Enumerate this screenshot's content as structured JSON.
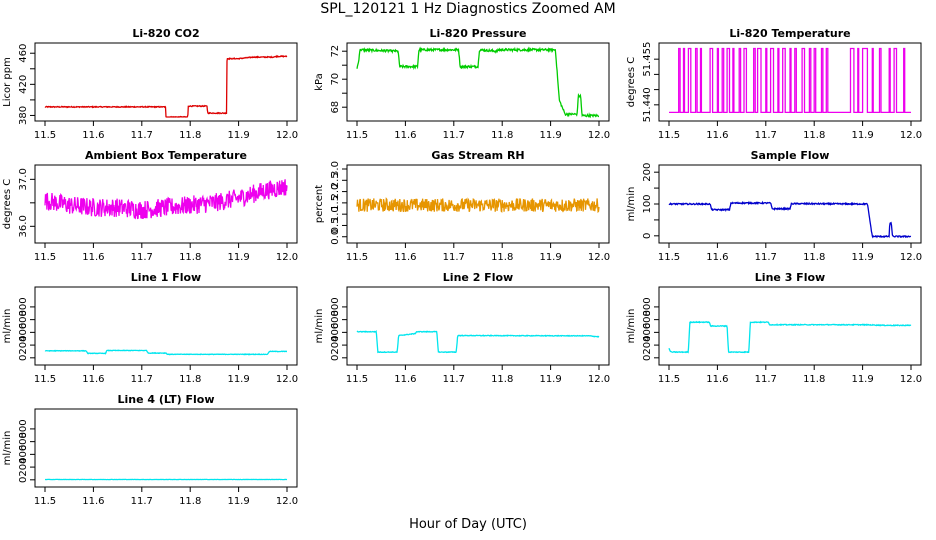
{
  "figure": {
    "title": "SPL_120121  1 Hz Diagnostics Zoomed AM",
    "xlabel": "Hour of Day (UTC)"
  },
  "chart_data": [
    {
      "type": "line",
      "title": "Li-820 CO2",
      "ylabel": "Licor ppm",
      "color": "#dd0000",
      "noise": 0.6,
      "xlim": [
        11.5,
        12.0
      ],
      "ylim": [
        378,
        468
      ],
      "xticks": [
        "11.5",
        "11.6",
        "11.7",
        "11.8",
        "11.9",
        "12.0"
      ],
      "yticks": [
        380,
        400,
        420,
        440,
        460
      ],
      "yticklabels": [
        "380",
        "",
        "420",
        "",
        "460"
      ],
      "x": [
        11.5,
        11.749,
        11.75,
        11.795,
        11.796,
        11.835,
        11.836,
        11.875,
        11.876,
        11.9,
        11.93,
        11.97,
        11.98,
        12.0
      ],
      "y": [
        391,
        391,
        378,
        378,
        392,
        392,
        383,
        383,
        453,
        453,
        455,
        455,
        456,
        456
      ]
    },
    {
      "type": "line",
      "title": "Li-820 Pressure",
      "ylabel": "kPa",
      "color": "#00cc00",
      "noise": 0.08,
      "xlim": [
        11.5,
        12.0
      ],
      "ylim": [
        67.3,
        72.3
      ],
      "xticks": [
        "11.5",
        "11.6",
        "11.7",
        "11.8",
        "11.9",
        "12.0"
      ],
      "yticks": [
        68,
        69,
        70,
        71,
        72
      ],
      "yticklabels": [
        "68",
        "",
        "70",
        "",
        "72"
      ],
      "x": [
        11.5,
        11.503,
        11.506,
        11.585,
        11.588,
        11.625,
        11.628,
        11.71,
        11.713,
        11.75,
        11.753,
        11.79,
        11.793,
        11.91,
        11.918,
        11.93,
        11.955,
        11.957,
        11.962,
        11.965,
        11.97,
        12.0
      ],
      "y": [
        70.8,
        71.2,
        72.1,
        72.0,
        70.9,
        70.9,
        72.1,
        72.1,
        70.9,
        70.9,
        72.1,
        72.0,
        72.1,
        72.1,
        68.5,
        67.5,
        67.5,
        68.8,
        68.8,
        67.4,
        67.4,
        67.4
      ]
    },
    {
      "type": "line",
      "title": "Li-820 Temperature",
      "ylabel": "degrees C",
      "color": "#ee00ee",
      "xlim": [
        11.5,
        12.0
      ],
      "ylim": [
        51.436,
        51.459
      ],
      "xticks": [
        "11.5",
        "11.6",
        "11.7",
        "11.8",
        "11.9",
        "12.0"
      ],
      "yticks": [
        51.44,
        51.445,
        51.45,
        51.455
      ],
      "yticklabels": [
        "51.440",
        "",
        "",
        "51.455"
      ],
      "low": 51.4375,
      "high": 51.4585,
      "switch_times": [
        11.52,
        11.523,
        11.53,
        11.532,
        11.54,
        11.545,
        11.555,
        11.558,
        11.565,
        11.567,
        11.585,
        11.59,
        11.6,
        11.602,
        11.61,
        11.613,
        11.62,
        11.625,
        11.632,
        11.634,
        11.645,
        11.648,
        11.655,
        11.66,
        11.675,
        11.678,
        11.683,
        11.69,
        11.7,
        11.702,
        11.71,
        11.716,
        11.725,
        11.727,
        11.735,
        11.74,
        11.75,
        11.752,
        11.76,
        11.763,
        11.775,
        11.78,
        11.79,
        11.793,
        11.8,
        11.803,
        11.815,
        11.818,
        11.825,
        11.828,
        11.875,
        11.882,
        11.89,
        11.892,
        11.9,
        11.91,
        11.92,
        11.922,
        11.935,
        11.938,
        11.955,
        11.957,
        11.965,
        11.97,
        11.985,
        11.987
      ]
    },
    {
      "type": "line",
      "title": "Ambient Box Temperature",
      "ylabel": "degrees C",
      "color": "#ee00ee",
      "noise": 0.2,
      "xlim": [
        11.5,
        12.0
      ],
      "ylim": [
        35.73,
        37.22
      ],
      "xticks": [
        "11.5",
        "11.6",
        "11.7",
        "11.8",
        "11.9",
        "12.0"
      ],
      "yticks": [
        36.0,
        36.5,
        37.0
      ],
      "yticklabels": [
        "36.0",
        "",
        "37.0"
      ],
      "x": [
        11.5,
        11.55,
        11.6,
        11.65,
        11.7,
        11.75,
        11.8,
        11.85,
        11.9,
        11.95,
        12.0
      ],
      "y": [
        36.55,
        36.45,
        36.4,
        36.4,
        36.35,
        36.4,
        36.45,
        36.5,
        36.6,
        36.75,
        36.85
      ]
    },
    {
      "type": "line",
      "title": "Gas Stream RH",
      "ylabel": "percent",
      "color": "#e69500",
      "noise": 0.3,
      "xlim": [
        11.5,
        12.0
      ],
      "ylim": [
        -0.1,
        3.0
      ],
      "xticks": [
        "11.5",
        "11.6",
        "11.7",
        "11.8",
        "11.9",
        "12.0"
      ],
      "yticks": [
        0.0,
        0.5,
        1.0,
        1.5,
        2.0,
        2.5,
        3.0
      ],
      "yticklabels": [
        "0.0",
        "0.5",
        "1.0",
        "1.5",
        "2.0",
        "2.5",
        "3.0"
      ],
      "x": [
        11.5,
        11.6,
        11.7,
        11.8,
        11.9,
        12.0
      ],
      "y": [
        1.4,
        1.4,
        1.4,
        1.4,
        1.4,
        1.4
      ]
    },
    {
      "type": "line",
      "title": "Sample Flow",
      "ylabel": "ml/min",
      "color": "#0000cc",
      "noise": 2,
      "xlim": [
        11.5,
        12.0
      ],
      "ylim": [
        -10,
        210
      ],
      "xticks": [
        "11.5",
        "11.6",
        "11.7",
        "11.8",
        "11.9",
        "12.0"
      ],
      "yticks": [
        0,
        50,
        100,
        150,
        200
      ],
      "yticklabels": [
        "0",
        "",
        "100",
        "",
        "200"
      ],
      "x": [
        11.5,
        11.585,
        11.588,
        11.625,
        11.628,
        11.71,
        11.713,
        11.75,
        11.753,
        11.9,
        11.91,
        11.92,
        11.955,
        11.956,
        11.959,
        11.962,
        11.963,
        12.0
      ],
      "y": [
        100,
        100,
        82,
        82,
        103,
        103,
        85,
        85,
        101,
        100,
        100,
        -2,
        -2,
        40,
        40,
        -2,
        -2,
        -2
      ]
    },
    {
      "type": "line",
      "title": "Line 1 Flow",
      "ylabel": "ml/min",
      "color": "#00e5ee",
      "noise": 4,
      "xlim": [
        11.5,
        12.0
      ],
      "ylim": [
        -50,
        1050
      ],
      "xticks": [
        "11.5",
        "11.6",
        "11.7",
        "11.8",
        "11.9",
        "12.0"
      ],
      "yticks": [
        0,
        200,
        400,
        600,
        800
      ],
      "yticklabels": [
        "0",
        "200",
        "400",
        "600",
        "800"
      ],
      "x": [
        11.5,
        11.585,
        11.588,
        11.625,
        11.628,
        11.71,
        11.713,
        11.75,
        11.753,
        11.96,
        11.963,
        12.0
      ],
      "y": [
        110,
        110,
        70,
        70,
        115,
        115,
        75,
        75,
        55,
        55,
        100,
        100
      ]
    },
    {
      "type": "line",
      "title": "Line 2 Flow",
      "ylabel": "ml/min",
      "color": "#00e5ee",
      "noise": 5,
      "xlim": [
        11.5,
        12.0
      ],
      "ylim": [
        -50,
        1050
      ],
      "xticks": [
        "11.5",
        "11.6",
        "11.7",
        "11.8",
        "11.9",
        "12.0"
      ],
      "yticks": [
        0,
        200,
        400,
        600,
        800
      ],
      "yticklabels": [
        "0",
        "200",
        "400",
        "600",
        "800"
      ],
      "x": [
        11.5,
        11.54,
        11.543,
        11.583,
        11.586,
        11.62,
        11.623,
        11.665,
        11.668,
        11.705,
        11.708,
        11.98,
        12.0
      ],
      "y": [
        410,
        410,
        90,
        90,
        350,
        380,
        410,
        410,
        90,
        90,
        350,
        345,
        330
      ]
    },
    {
      "type": "line",
      "title": "Line 3 Flow",
      "ylabel": "ml/min",
      "color": "#00e5ee",
      "noise": 6,
      "xlim": [
        11.5,
        12.0
      ],
      "ylim": [
        -50,
        1050
      ],
      "xticks": [
        "11.5",
        "11.6",
        "11.7",
        "11.8",
        "11.9",
        "12.0"
      ],
      "yticks": [
        0,
        200,
        400,
        600,
        800
      ],
      "yticklabels": [
        "0",
        "200",
        "400",
        "600",
        "800"
      ],
      "x": [
        11.5,
        11.502,
        11.505,
        11.54,
        11.543,
        11.583,
        11.586,
        11.62,
        11.623,
        11.665,
        11.668,
        11.705,
        11.708,
        11.9,
        11.95,
        12.0
      ],
      "y": [
        150,
        110,
        90,
        90,
        560,
        560,
        500,
        500,
        90,
        90,
        560,
        560,
        520,
        520,
        510,
        510
      ]
    },
    {
      "type": "line",
      "title": "Line 4 (LT) Flow",
      "ylabel": "ml/min",
      "color": "#00e5ee",
      "noise": 2,
      "xlim": [
        11.5,
        12.0
      ],
      "ylim": [
        -50,
        1050
      ],
      "xticks": [
        "11.5",
        "11.6",
        "11.7",
        "11.8",
        "11.9",
        "12.0"
      ],
      "yticks": [
        0,
        200,
        400,
        600,
        800
      ],
      "yticklabels": [
        "0",
        "200",
        "400",
        "600",
        "800"
      ],
      "x": [
        11.5,
        12.0
      ],
      "y": [
        5,
        5
      ]
    }
  ]
}
